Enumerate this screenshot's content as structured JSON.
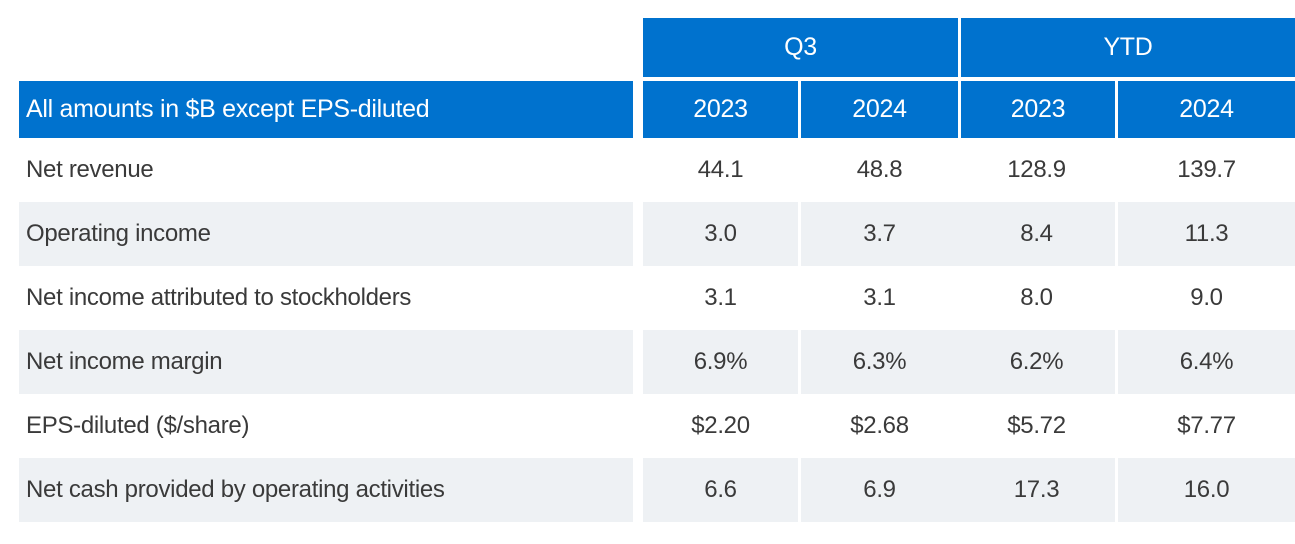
{
  "colors": {
    "header_blue": "#0072ce",
    "alt_row_gray": "#eef1f4",
    "body_text": "#3a3a3a",
    "header_text": "#ffffff"
  },
  "chart_data": {
    "type": "table",
    "corner_label": "All amounts in $B except EPS-diluted",
    "column_groups": [
      {
        "label": "Q3",
        "columns": [
          "2023",
          "2024"
        ]
      },
      {
        "label": "YTD",
        "columns": [
          "2023",
          "2024"
        ]
      }
    ],
    "rows": [
      {
        "label": "Net revenue",
        "values": [
          "44.1",
          "48.8",
          "128.9",
          "139.7"
        ]
      },
      {
        "label": "Operating income",
        "values": [
          "3.0",
          "3.7",
          "8.4",
          "11.3"
        ]
      },
      {
        "label": "Net income attributed to stockholders",
        "values": [
          "3.1",
          "3.1",
          "8.0",
          "9.0"
        ]
      },
      {
        "label": "Net income margin",
        "values": [
          "6.9%",
          "6.3%",
          "6.2%",
          "6.4%"
        ]
      },
      {
        "label": "EPS-diluted ($/share)",
        "values": [
          "$2.20",
          "$2.68",
          "$5.72",
          "$7.77"
        ]
      },
      {
        "label": "Net cash provided by operating activities",
        "values": [
          "6.6",
          "6.9",
          "17.3",
          "16.0"
        ]
      }
    ]
  }
}
